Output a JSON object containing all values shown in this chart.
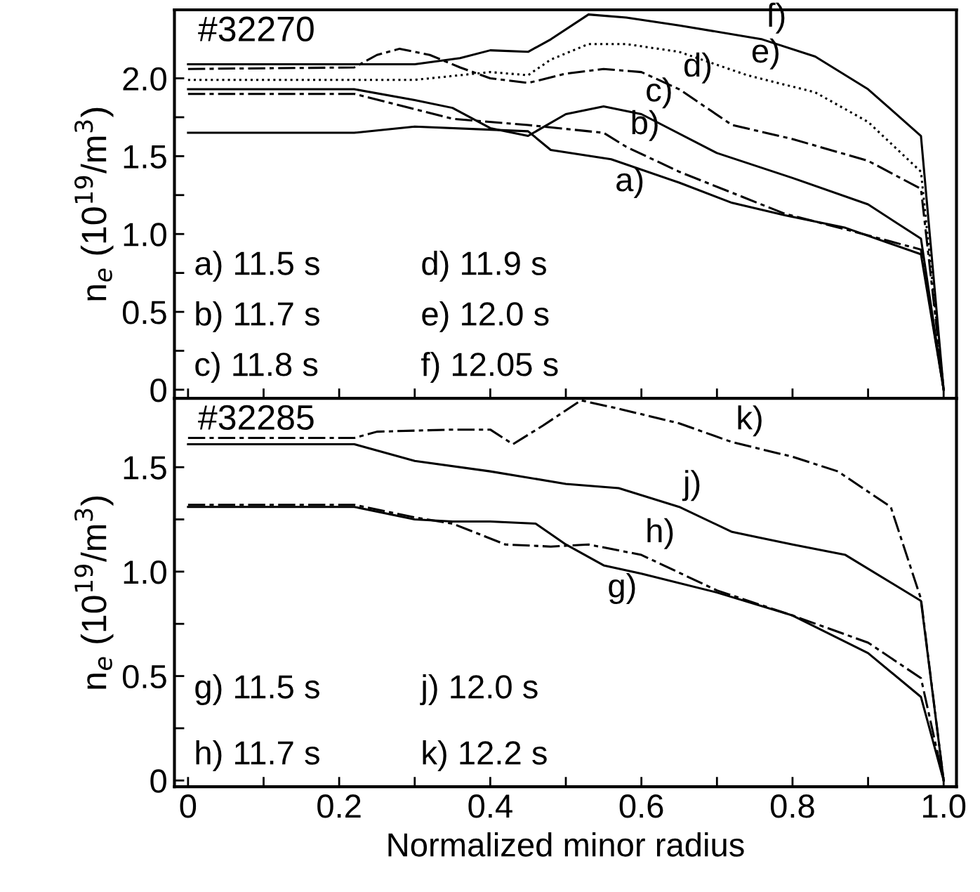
{
  "chart_data": [
    {
      "type": "line",
      "ylabel": "n$_{e}$ (10$^{19}$/m$^{3}$)",
      "xlim": [
        -0.018,
        1.017
      ],
      "ylim": [
        -0.055,
        2.44
      ],
      "xticks": [
        {
          "value": 0,
          "label": null
        },
        {
          "value": 0.1,
          "label": null
        },
        {
          "value": 0.2,
          "label": null
        },
        {
          "value": 0.3,
          "label": null
        },
        {
          "value": 0.4,
          "label": null
        },
        {
          "value": 0.5,
          "label": null
        },
        {
          "value": 0.6,
          "label": null
        },
        {
          "value": 0.7,
          "label": null
        },
        {
          "value": 0.8,
          "label": null
        },
        {
          "value": 0.9,
          "label": null
        },
        {
          "value": 1,
          "label": null
        }
      ],
      "yticks": [
        0,
        {
          "value": 0.25,
          "label": null
        },
        0.5,
        {
          "value": 0.75,
          "label": null
        },
        {
          "value": 1,
          "label": "1.0"
        },
        {
          "value": 1.25,
          "label": null
        },
        1.5,
        {
          "value": 1.75,
          "label": null
        },
        {
          "value": 2,
          "label": "2.0"
        }
      ],
      "tick_labels": "y",
      "grid": false,
      "legend": false,
      "series": [
        {
          "color": "#000000",
          "line_style": "solid",
          "x": [
            0,
            0.22,
            0.3,
            0.45,
            0.48,
            0.56,
            0.65,
            0.72,
            0.79,
            0.87,
            0.97,
            1.0
          ],
          "values": [
            1.65,
            1.65,
            1.69,
            1.66,
            1.54,
            1.48,
            1.33,
            1.2,
            1.12,
            1.04,
            0.87,
            0
          ]
        },
        {
          "color": "#000000",
          "line_style": "dashed",
          "x": [
            0,
            0.22,
            0.35,
            0.45,
            0.55,
            0.58,
            0.65,
            0.79,
            0.87,
            0.97,
            1.0
          ],
          "values": [
            1.9,
            1.9,
            1.74,
            1.7,
            1.65,
            1.56,
            1.4,
            1.13,
            1.03,
            0.9,
            0
          ]
        },
        {
          "color": "#000000",
          "line_style": "solid",
          "x": [
            0,
            0.22,
            0.3,
            0.35,
            0.4,
            0.45,
            0.5,
            0.55,
            0.6,
            0.7,
            0.8,
            0.9,
            0.97,
            1.0
          ],
          "values": [
            1.93,
            1.93,
            1.86,
            1.81,
            1.68,
            1.63,
            1.77,
            1.82,
            1.77,
            1.52,
            1.36,
            1.19,
            0.97,
            0
          ]
        },
        {
          "color": "#000000",
          "line_style": "dashed",
          "x": [
            0,
            0.22,
            0.25,
            0.28,
            0.32,
            0.36,
            0.4,
            0.45,
            0.5,
            0.55,
            0.6,
            0.65,
            0.72,
            0.8,
            0.9,
            0.97,
            1.0
          ],
          "values": [
            2.06,
            2.07,
            2.15,
            2.19,
            2.15,
            2.07,
            2.0,
            1.97,
            2.03,
            2.06,
            2.04,
            1.93,
            1.7,
            1.61,
            1.47,
            1.29,
            0
          ]
        },
        {
          "color": "#000000",
          "line_style": "dotted",
          "x": [
            0,
            0.3,
            0.4,
            0.45,
            0.48,
            0.53,
            0.58,
            0.65,
            0.74,
            0.83,
            0.9,
            0.97,
            1.0
          ],
          "values": [
            1.99,
            1.99,
            2.04,
            2.02,
            2.12,
            2.22,
            2.22,
            2.17,
            2.02,
            1.91,
            1.72,
            1.4,
            0
          ]
        },
        {
          "color": "#000000",
          "line_style": "solid",
          "x": [
            0,
            0.3,
            0.36,
            0.4,
            0.45,
            0.48,
            0.53,
            0.58,
            0.65,
            0.76,
            0.83,
            0.9,
            0.97,
            1.0
          ],
          "values": [
            2.09,
            2.09,
            2.13,
            2.18,
            2.17,
            2.25,
            2.41,
            2.39,
            2.34,
            2.25,
            2.14,
            1.93,
            1.63,
            0
          ]
        }
      ],
      "annotations": [
        "#32270",
        "a) 11.5 s",
        "b) 11.7 s",
        "c) 11.8 s",
        "d) 11.9 s",
        "e) 12.0 s",
        "f) 12.05 s",
        {
          "text": "a)",
          "x": 0.56,
          "y": 1.48
        },
        {
          "text": "b)",
          "x": 0.58,
          "y": 1.56
        },
        {
          "text": "c)",
          "x": 0.6,
          "y": 1.77
        },
        {
          "text": "d)",
          "x": 0.65,
          "y": 1.93
        },
        {
          "text": "e)",
          "x": 0.74,
          "y": 2.02
        },
        {
          "text": "f)",
          "x": 0.76,
          "y": 2.25
        }
      ]
    },
    {
      "type": "line",
      "xlabel": "Normalized minor radius",
      "ylabel": "n$_{e}$ (10$^{19}$/m$^{3}$)",
      "xlim": [
        -0.018,
        1.017
      ],
      "ylim": [
        -0.03,
        1.83
      ],
      "xticks": [
        0,
        {
          "value": 0.1,
          "label": null
        },
        0.2,
        {
          "value": 0.3,
          "label": null
        },
        0.4,
        {
          "value": 0.5,
          "label": null
        },
        0.6,
        {
          "value": 0.7,
          "label": null
        },
        0.8,
        {
          "value": 0.9,
          "label": null
        },
        {
          "value": 1,
          "label": "1.0"
        }
      ],
      "yticks": [
        0,
        {
          "value": 0.25,
          "label": null
        },
        0.5,
        {
          "value": 0.75,
          "label": null
        },
        {
          "value": 1,
          "label": "1.0"
        },
        {
          "value": 1.25,
          "label": null
        },
        1.5
      ],
      "grid": false,
      "legend": false,
      "series": [
        {
          "color": "#000000",
          "line_style": "solid",
          "x": [
            0,
            0.22,
            0.3,
            0.35,
            0.4,
            0.46,
            0.5,
            0.55,
            0.6,
            0.7,
            0.8,
            0.9,
            0.97,
            1.0
          ],
          "values": [
            1.31,
            1.31,
            1.25,
            1.24,
            1.24,
            1.23,
            1.13,
            1.03,
            0.99,
            0.9,
            0.79,
            0.61,
            0.4,
            0
          ]
        },
        {
          "color": "#000000",
          "line_style": "dashed",
          "x": [
            0,
            0.22,
            0.3,
            0.35,
            0.42,
            0.48,
            0.53,
            0.6,
            0.7,
            0.8,
            0.9,
            0.97,
            1.0
          ],
          "values": [
            1.32,
            1.32,
            1.26,
            1.23,
            1.13,
            1.12,
            1.13,
            1.08,
            0.91,
            0.79,
            0.66,
            0.49,
            0
          ]
        },
        {
          "color": "#000000",
          "line_style": "solid",
          "x": [
            0,
            0.22,
            0.3,
            0.4,
            0.5,
            0.57,
            0.65,
            0.72,
            0.8,
            0.87,
            0.97,
            1.0
          ],
          "values": [
            1.61,
            1.61,
            1.53,
            1.48,
            1.42,
            1.4,
            1.31,
            1.19,
            1.13,
            1.08,
            0.86,
            0
          ]
        },
        {
          "color": "#000000",
          "line_style": "dashed",
          "x": [
            0,
            0.22,
            0.25,
            0.35,
            0.4,
            0.43,
            0.47,
            0.52,
            0.57,
            0.65,
            0.72,
            0.8,
            0.86,
            0.93,
            0.97,
            1.0
          ],
          "values": [
            1.64,
            1.64,
            1.67,
            1.68,
            1.68,
            1.61,
            1.7,
            1.82,
            1.78,
            1.71,
            1.62,
            1.55,
            1.48,
            1.31,
            0.87,
            0
          ]
        }
      ],
      "annotations": [
        "#32285",
        "g) 11.5 s",
        "h) 11.7 s",
        "j) 12.0 s",
        "k) 12.2 s",
        {
          "text": "g)",
          "x": 0.55,
          "y": 1.03
        },
        {
          "text": "h)",
          "x": 0.6,
          "y": 1.08
        },
        {
          "text": "j)",
          "x": 0.65,
          "y": 1.31
        },
        {
          "text": "k)",
          "x": 0.72,
          "y": 1.62
        }
      ]
    }
  ]
}
